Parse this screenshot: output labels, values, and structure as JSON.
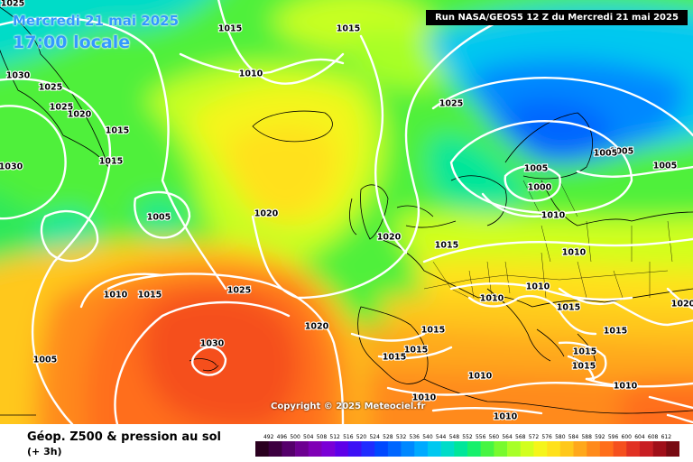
{
  "title": {
    "date": "Mercredi 21 mai 2025",
    "time": "17:00 locale"
  },
  "run_info": "Run NASA/GEOS5 12 Z du Mercredi 21 mai 2025",
  "copyright": "Copyright © 2025 Meteociel.fr",
  "footer": {
    "title": "Géop. Z500 & pression au sol",
    "step": "(+ 3h)"
  },
  "legend": {
    "values": [
      492,
      496,
      500,
      504,
      508,
      512,
      516,
      520,
      524,
      528,
      532,
      536,
      540,
      544,
      548,
      552,
      556,
      560,
      564,
      568,
      572,
      576,
      580,
      584,
      588,
      592,
      596,
      600,
      604,
      608,
      612
    ],
    "colors": [
      "#2a001f",
      "#3d0040",
      "#55006b",
      "#6d0091",
      "#7f00b5",
      "#7a00d6",
      "#5e00e8",
      "#3c10f5",
      "#1f2cff",
      "#0048ff",
      "#0066ff",
      "#0088ff",
      "#00aaff",
      "#00c8f0",
      "#00dcc8",
      "#00e69a",
      "#16f06c",
      "#46f542",
      "#78fa2e",
      "#a8ff28",
      "#d2ff1e",
      "#f5f51a",
      "#ffe11a",
      "#ffc81a",
      "#ffa81a",
      "#ff8a1a",
      "#ff6e1a",
      "#f5501e",
      "#e13223",
      "#c81e23",
      "#a00f19",
      "#780a12"
    ]
  },
  "isobars": [
    "1025",
    "1015",
    "1015",
    "1030",
    "1025",
    "1025",
    "1020",
    "1015",
    "1015",
    "1030",
    "1010",
    "1005",
    "1020",
    "1010",
    "1015",
    "1025",
    "1025",
    "1020",
    "1020",
    "1015",
    "1005",
    "1005",
    "1005",
    "1000",
    "1005",
    "1010",
    "1010",
    "1010",
    "1010",
    "1020",
    "1015",
    "1015",
    "1015",
    "1015",
    "1015",
    "1030",
    "1005",
    "1015",
    "1015",
    "1010",
    "1010",
    "1010",
    "1010"
  ]
}
